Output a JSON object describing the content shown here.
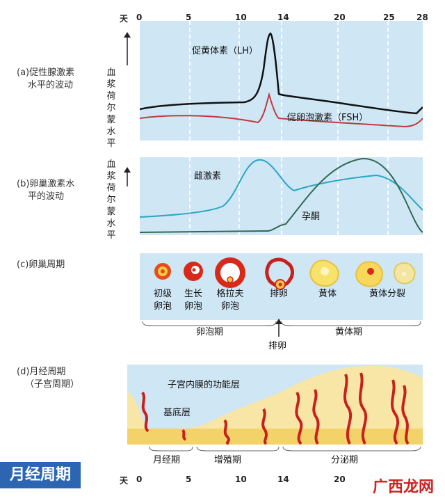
{
  "axis": {
    "unit": "天",
    "days_top": [
      "0",
      "5",
      "10",
      "14",
      "20",
      "25",
      "28"
    ],
    "days_bottom": [
      "0",
      "5",
      "10",
      "14",
      "20"
    ]
  },
  "sections": {
    "a": {
      "label_line1": "(a)促性腺激素",
      "label_line2": "水平的波动",
      "ylabel": "血浆荷尔蒙水平",
      "lh": "促黄体素（LH）",
      "fsh": "促卵泡激素（FSH）",
      "lh_color": "#111111",
      "fsh_color": "#c0383c"
    },
    "b": {
      "label_line1": "(b)卵巢激素水",
      "label_line2": "平的波动",
      "ylabel": "血浆荷尔蒙水平",
      "estrogen": "雌激素",
      "progesterone": "孕酮",
      "estrogen_color": "#2aa6c4",
      "progesterone_color": "#2e6a52"
    },
    "c": {
      "label": "(c)卵巢周期",
      "stages": [
        {
          "l1": "初级",
          "l2": "卵泡"
        },
        {
          "l1": "生长",
          "l2": "卵泡"
        },
        {
          "l1": "格拉夫",
          "l2": "卵泡"
        },
        {
          "l1": "排卵",
          "l2": ""
        },
        {
          "l1": "黄体",
          "l2": ""
        },
        {
          "l1": "黄体分裂",
          "l2": ""
        }
      ],
      "follicular": "卵泡期",
      "luteal": "黄体期",
      "ovulation": "排卵"
    },
    "d": {
      "label_line1": "(d)月经周期",
      "label_line2": "（子宫周期）",
      "functional": "子宫内膜的功能层",
      "basal": "基底层",
      "menstrual": "月经期",
      "proliferative": "增殖期",
      "secretory": "分泌期"
    }
  },
  "title_badge": "月经周期",
  "watermark": "广西龙网"
}
